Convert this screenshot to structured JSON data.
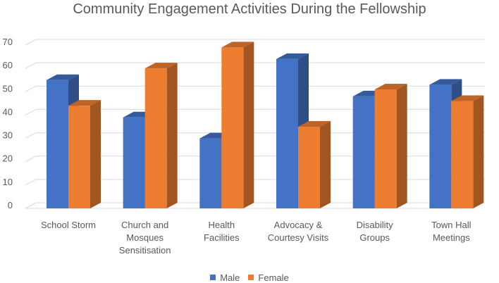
{
  "chart_data": {
    "type": "bar",
    "title": "Community Engagement Activities During the Fellowship",
    "categories": [
      [
        "School Storm"
      ],
      [
        "Church and",
        "Mosques",
        "Sensitisation"
      ],
      [
        "Health",
        "Facilities"
      ],
      [
        "Advocacy &",
        "Courtesy Visits"
      ],
      [
        "Disability",
        "Groups"
      ],
      [
        "Town Hall",
        "Meetings"
      ]
    ],
    "series": [
      {
        "name": "Male",
        "color": "#4472C4",
        "values": [
          55,
          39,
          30,
          64,
          48,
          53
        ]
      },
      {
        "name": "Female",
        "color": "#ED7D31",
        "values": [
          44,
          60,
          69,
          35,
          51,
          46
        ]
      }
    ],
    "ylim": [
      0,
      70
    ],
    "yticks": [
      "0",
      "10",
      "20",
      "30",
      "40",
      "50",
      "60",
      "70"
    ],
    "xlabel": "",
    "ylabel": "",
    "grid": true,
    "legend_position": "bottom"
  }
}
